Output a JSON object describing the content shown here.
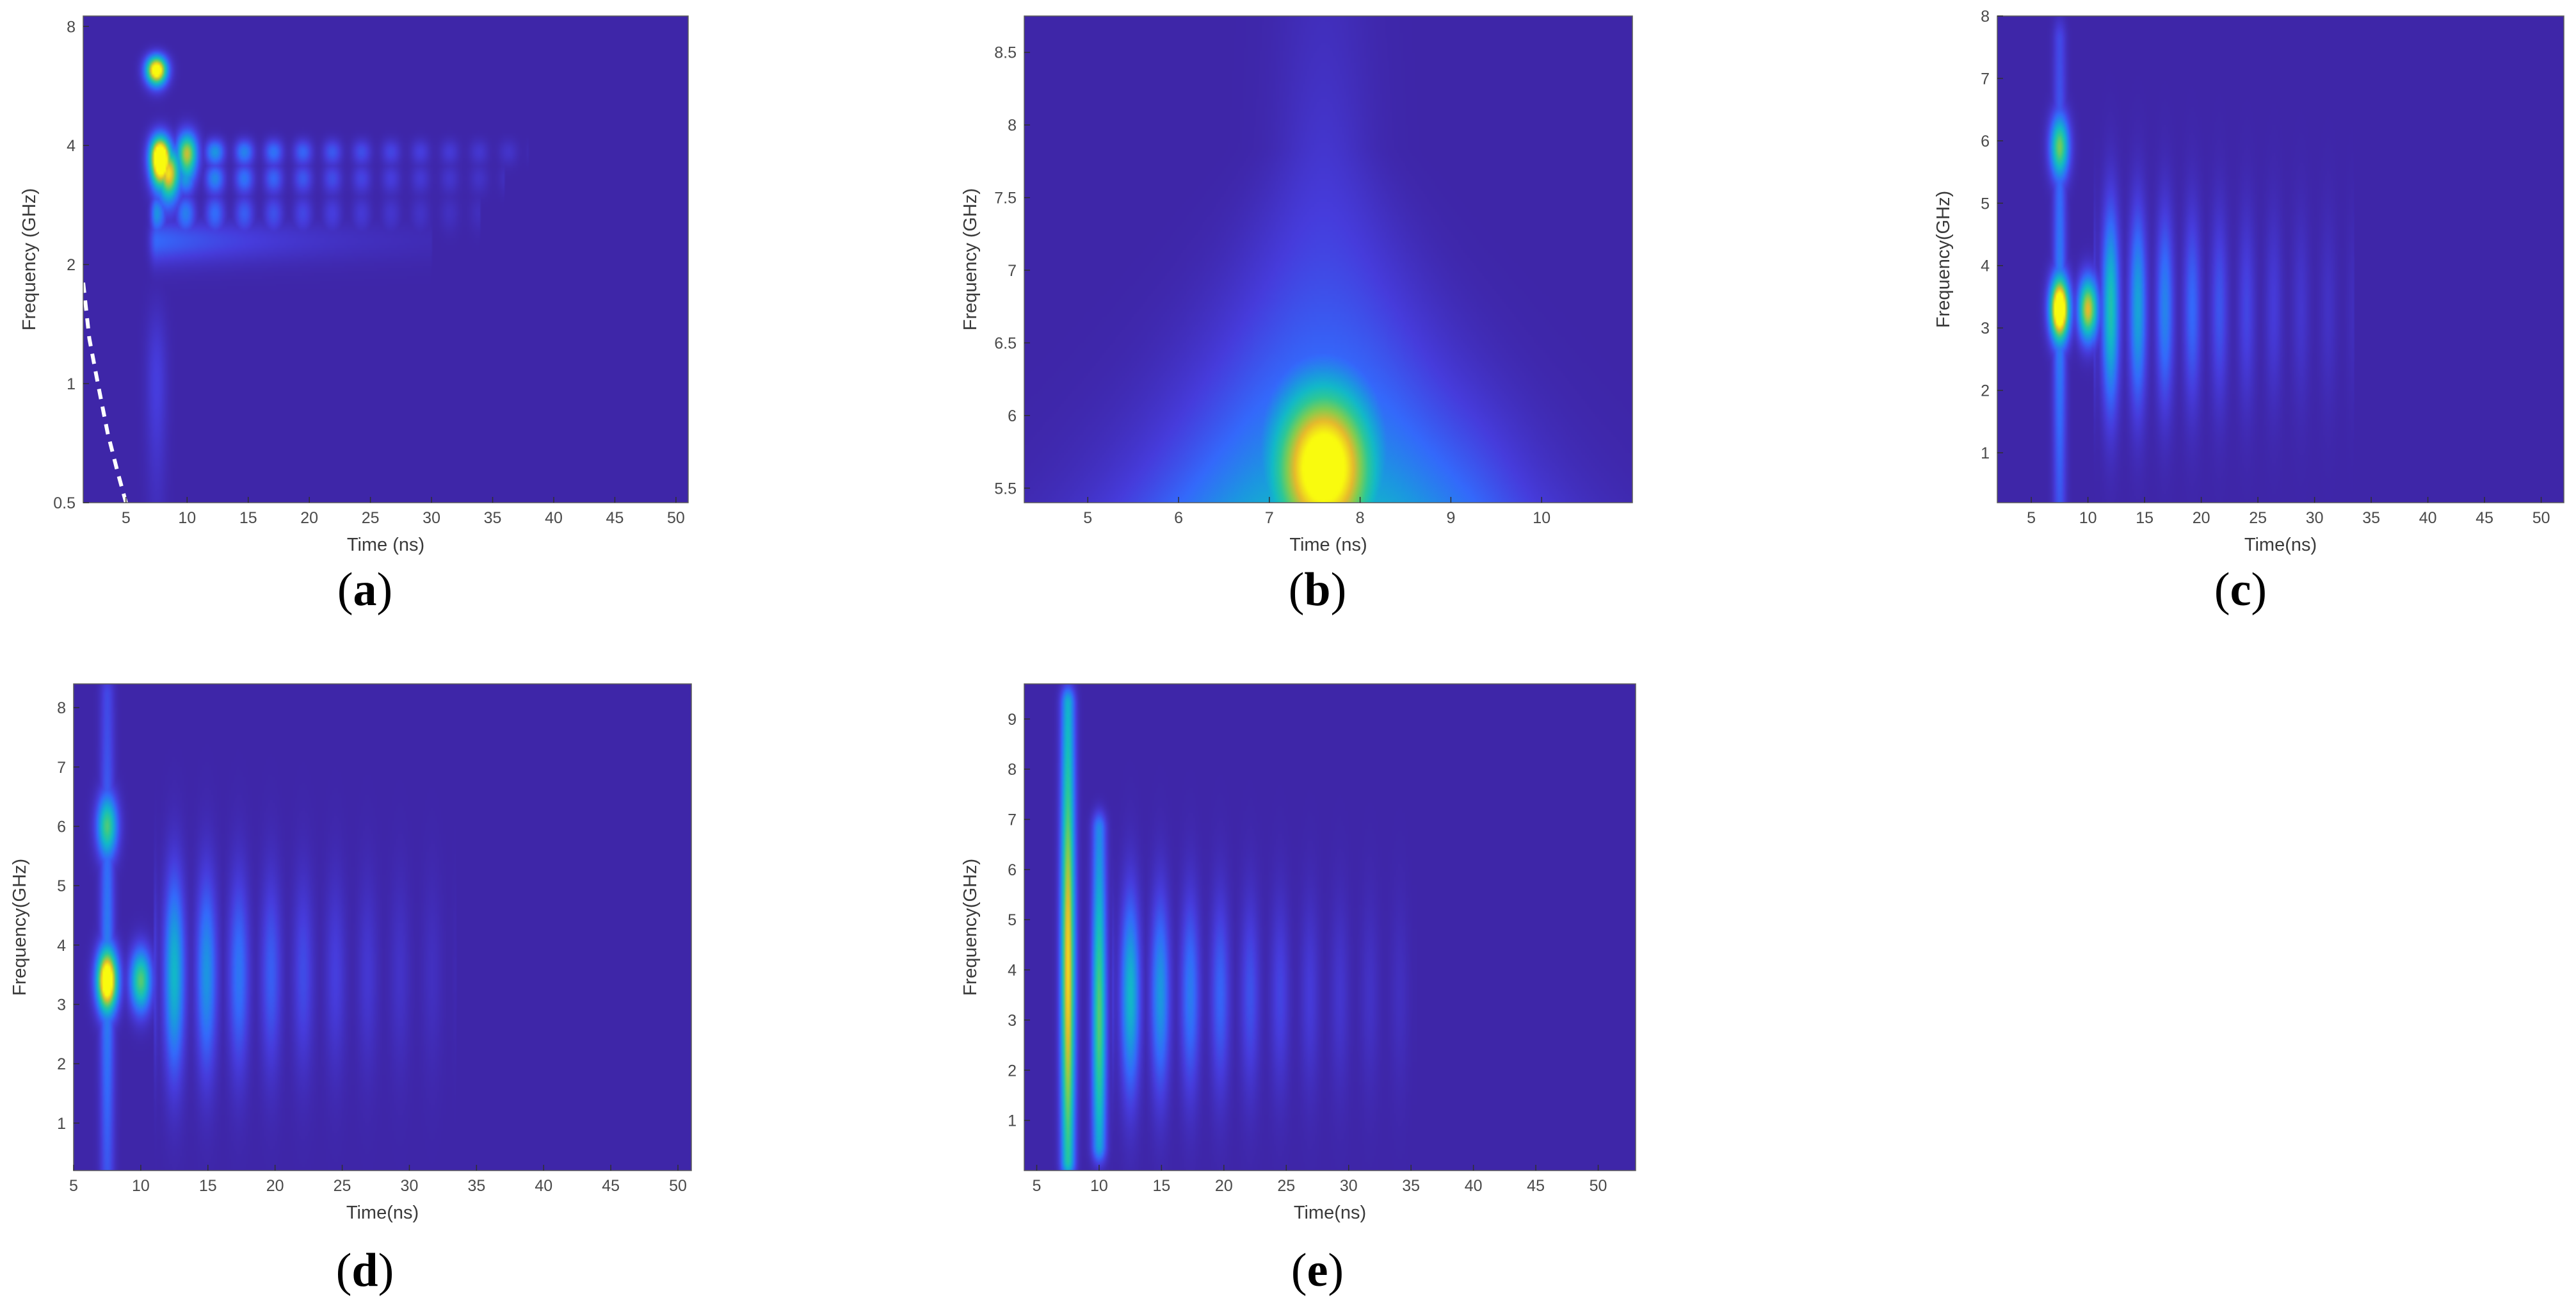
{
  "chart_data": [
    {
      "type": "heatmap",
      "panel_label": "a",
      "xlabel": "Time (ns)",
      "ylabel": "Frequency (GHz)",
      "xlim": [
        1.5,
        51
      ],
      "ylim": [
        0.5,
        8.5
      ],
      "y_scale": "log",
      "xticks": [
        5,
        10,
        15,
        20,
        25,
        30,
        35,
        40,
        45,
        50
      ],
      "yticks": [
        0.5,
        1,
        2,
        4,
        8
      ],
      "colormap": "parula",
      "background_color": "#3e26a8",
      "features": [
        {
          "kind": "peak",
          "t": 7.5,
          "f": 6.2,
          "intensity": 0.95
        },
        {
          "kind": "peak",
          "t": 7.8,
          "f": 3.7,
          "intensity": 1.0
        },
        {
          "kind": "peak",
          "t": 8.5,
          "f": 3.4,
          "intensity": 0.75
        },
        {
          "kind": "peak",
          "t": 10,
          "f": 3.8,
          "intensity": 0.6
        },
        {
          "kind": "band",
          "t_start": 7.5,
          "t_end": 35,
          "f": 3.85,
          "intensity": 0.42,
          "ripple": true
        },
        {
          "kind": "band",
          "t_start": 7.5,
          "t_end": 33,
          "f": 3.3,
          "intensity": 0.38,
          "ripple": true
        },
        {
          "kind": "band",
          "t_start": 7.5,
          "t_end": 31,
          "f": 2.7,
          "intensity": 0.3,
          "ripple": true
        },
        {
          "kind": "band",
          "t_start": 7.5,
          "t_end": 27,
          "f": 2.3,
          "intensity": 0.2,
          "ripple": false
        },
        {
          "kind": "peak",
          "t": 7.5,
          "f": 1.0,
          "intensity": 0.1
        }
      ],
      "dashed_curve": {
        "color": "#ffffff",
        "points": [
          [
            1.5,
            1.8
          ],
          [
            2,
            1.3
          ],
          [
            2.7,
            1.0
          ],
          [
            3.5,
            0.75
          ],
          [
            4.3,
            0.6
          ],
          [
            5.0,
            0.5
          ]
        ]
      }
    },
    {
      "type": "heatmap",
      "panel_label": "b",
      "xlabel": "Time (ns)",
      "ylabel": "Frequency (GHz)",
      "xlim": [
        4.3,
        11
      ],
      "ylim": [
        5.4,
        8.75
      ],
      "xticks": [
        5,
        6,
        7,
        8,
        9,
        10
      ],
      "yticks": [
        5.5,
        6,
        6.5,
        7,
        7.5,
        8,
        8.5
      ],
      "colormap": "parula",
      "background_color": "#3e26a8",
      "features": [
        {
          "kind": "peak",
          "t": 7.6,
          "f": 5.65,
          "intensity": 0.85
        },
        {
          "kind": "cone",
          "t": 7.6,
          "f": 5.4,
          "intensity": 0.4
        },
        {
          "kind": "peak",
          "t": 9.3,
          "f": 5.6,
          "intensity": 0.08
        }
      ]
    },
    {
      "type": "heatmap",
      "panel_label": "c",
      "xlabel": "Time(ns)",
      "ylabel": "Frequency(GHz)",
      "xlim": [
        2,
        52
      ],
      "ylim": [
        0.2,
        8
      ],
      "xticks": [
        5,
        10,
        15,
        20,
        25,
        30,
        35,
        40,
        45,
        50
      ],
      "yticks": [
        1,
        2,
        3,
        4,
        5,
        6,
        7,
        8
      ],
      "colormap": "parula",
      "background_color": "#3e26a8",
      "features": [
        {
          "kind": "peak",
          "t": 7.5,
          "f": 5.9,
          "intensity": 0.55
        },
        {
          "kind": "peak",
          "t": 7.5,
          "f": 3.3,
          "intensity": 1.0
        },
        {
          "kind": "peak",
          "t": 10,
          "f": 3.3,
          "intensity": 0.7
        },
        {
          "kind": "column",
          "t": 7.5,
          "f_start": 0.2,
          "f_end": 7.6,
          "intensity": 0.25
        },
        {
          "kind": "train",
          "t_start": 12,
          "t_end": 32,
          "f": 3.3,
          "spacing": 2.4,
          "intensity": 0.45
        }
      ]
    },
    {
      "type": "heatmap",
      "panel_label": "d",
      "xlabel": "Time(ns)",
      "ylabel": "Frequency(GHz)",
      "xlim": [
        5,
        51
      ],
      "ylim": [
        0.2,
        8.4
      ],
      "xticks": [
        5,
        10,
        15,
        20,
        25,
        30,
        35,
        40,
        45,
        50
      ],
      "yticks": [
        1,
        2,
        3,
        4,
        5,
        6,
        7,
        8
      ],
      "colormap": "parula",
      "background_color": "#3e26a8",
      "features": [
        {
          "kind": "peak",
          "t": 7.5,
          "f": 6.0,
          "intensity": 0.5
        },
        {
          "kind": "peak",
          "t": 7.5,
          "f": 3.4,
          "intensity": 0.95
        },
        {
          "kind": "peak",
          "t": 10,
          "f": 3.4,
          "intensity": 0.55
        },
        {
          "kind": "column",
          "t": 7.5,
          "f_start": 0.2,
          "f_end": 8.2,
          "intensity": 0.25
        },
        {
          "kind": "train",
          "t_start": 12.5,
          "t_end": 32,
          "f": 3.5,
          "spacing": 2.4,
          "intensity": 0.4
        }
      ]
    },
    {
      "type": "heatmap",
      "panel_label": "e",
      "xlabel": "Time(ns)",
      "ylabel": "Frequency(GHz)",
      "xlim": [
        4,
        53
      ],
      "ylim": [
        0,
        9.7
      ],
      "xticks": [
        5,
        10,
        15,
        20,
        25,
        30,
        35,
        40,
        45,
        50
      ],
      "yticks": [
        1,
        2,
        3,
        4,
        5,
        6,
        7,
        8,
        9
      ],
      "colormap": "parula",
      "background_color": "#3e26a8",
      "features": [
        {
          "kind": "column",
          "t": 7.5,
          "f_start": 0.2,
          "f_end": 9.3,
          "intensity": 0.75
        },
        {
          "kind": "column",
          "t": 10,
          "f_start": 0.5,
          "f_end": 6.8,
          "intensity": 0.55
        },
        {
          "kind": "train",
          "t_start": 12.5,
          "t_end": 34,
          "f": 3.5,
          "spacing": 2.4,
          "intensity": 0.4
        }
      ]
    }
  ]
}
